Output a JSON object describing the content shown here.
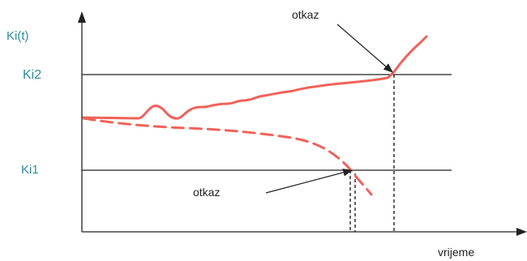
{
  "labels": {
    "y_axis": "Ki(t)",
    "x_axis": "vrijeme",
    "upper_limit": "Ki2",
    "lower_limit": "Ki1",
    "failure_upper": "otkaz",
    "failure_lower": "otkaz"
  },
  "colors": {
    "curve": "#f0625a",
    "axis": "#222222",
    "label_blue": "#2f8a9e"
  }
}
